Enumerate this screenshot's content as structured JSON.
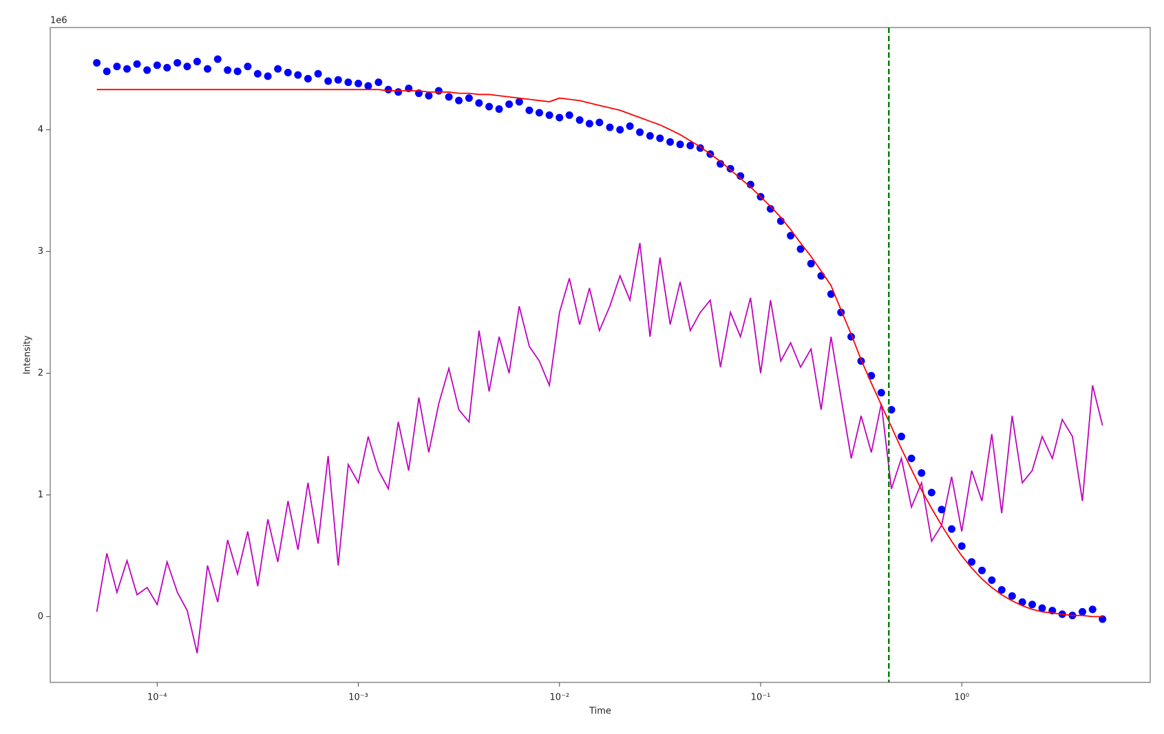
{
  "chart_data": {
    "type": "scatter",
    "xlabel": "Time",
    "ylabel": "Intensity",
    "y_offset_text": "1e6",
    "xscale": "log",
    "xlim": [
      2.94e-05,
      8.65
    ],
    "ylim": [
      -0.54,
      4.84
    ],
    "xticks": [
      {
        "value": 0.0001,
        "label": "10⁻⁴"
      },
      {
        "value": 0.001,
        "label": "10⁻³"
      },
      {
        "value": 0.01,
        "label": "10⁻²"
      },
      {
        "value": 0.1,
        "label": "10⁻¹"
      },
      {
        "value": 1,
        "label": "10⁰"
      }
    ],
    "yticks": [
      0,
      1,
      2,
      3,
      4
    ],
    "x": [
      5.01e-05,
      5.62e-05,
      6.31e-05,
      7.08e-05,
      7.94e-05,
      8.91e-05,
      0.0001,
      0.000112,
      0.000126,
      0.000141,
      0.000158,
      0.000178,
      0.0002,
      0.000224,
      0.000251,
      0.000282,
      0.000316,
      0.000355,
      0.000398,
      0.000447,
      0.000501,
      0.000562,
      0.000631,
      0.000708,
      0.000794,
      0.000891,
      0.001,
      0.00112,
      0.00126,
      0.00141,
      0.00158,
      0.00178,
      0.002,
      0.00224,
      0.00251,
      0.00282,
      0.00316,
      0.00355,
      0.00398,
      0.00447,
      0.00501,
      0.00562,
      0.00631,
      0.00708,
      0.00794,
      0.00891,
      0.01,
      0.0112,
      0.0126,
      0.0141,
      0.0158,
      0.0178,
      0.02,
      0.0224,
      0.0251,
      0.0282,
      0.0316,
      0.0355,
      0.0398,
      0.0447,
      0.0501,
      0.0562,
      0.0631,
      0.0708,
      0.0794,
      0.0891,
      0.1,
      0.112,
      0.126,
      0.141,
      0.158,
      0.178,
      0.2,
      0.224,
      0.251,
      0.282,
      0.316,
      0.355,
      0.398,
      0.447,
      0.501,
      0.562,
      0.631,
      0.708,
      0.794,
      0.891,
      1,
      1.12,
      1.26,
      1.41,
      1.58,
      1.78,
      2,
      2.24,
      2.51,
      2.82,
      3.16,
      3.55,
      3.98,
      4.47,
      5.01
    ],
    "series": [
      {
        "type": "line",
        "color": "#bf00bf",
        "values": [
          0.04,
          0.52,
          0.2,
          0.46,
          0.18,
          0.24,
          0.1,
          0.45,
          0.2,
          0.05,
          -0.3,
          0.42,
          0.12,
          0.63,
          0.35,
          0.7,
          0.25,
          0.8,
          0.45,
          0.95,
          0.55,
          1.1,
          0.6,
          1.32,
          0.42,
          1.25,
          1.1,
          1.48,
          1.2,
          1.05,
          1.6,
          1.2,
          1.8,
          1.35,
          1.75,
          2.04,
          1.7,
          1.6,
          2.35,
          1.85,
          2.3,
          2.0,
          2.55,
          2.22,
          2.1,
          1.9,
          2.5,
          2.78,
          2.4,
          2.7,
          2.35,
          2.55,
          2.8,
          2.6,
          3.07,
          2.3,
          2.95,
          2.4,
          2.75,
          2.35,
          2.5,
          2.6,
          2.05,
          2.5,
          2.3,
          2.62,
          2.0,
          2.6,
          2.1,
          2.25,
          2.05,
          2.2,
          1.7,
          2.3,
          1.8,
          1.3,
          1.65,
          1.35,
          1.75,
          1.05,
          1.3,
          0.9,
          1.1,
          0.62,
          0.75,
          1.15,
          0.7,
          1.2,
          0.95,
          1.5,
          0.85,
          1.65,
          1.1,
          1.2,
          1.48,
          1.3,
          1.62,
          1.48,
          0.95,
          1.9,
          1.57
        ]
      },
      {
        "type": "scatter",
        "color": "#0000ff",
        "values": [
          4.55,
          4.48,
          4.52,
          4.5,
          4.54,
          4.49,
          4.53,
          4.51,
          4.55,
          4.52,
          4.56,
          4.5,
          4.58,
          4.49,
          4.48,
          4.52,
          4.46,
          4.44,
          4.5,
          4.47,
          4.45,
          4.42,
          4.46,
          4.4,
          4.41,
          4.39,
          4.38,
          4.36,
          4.39,
          4.33,
          4.31,
          4.34,
          4.3,
          4.28,
          4.32,
          4.27,
          4.24,
          4.26,
          4.22,
          4.19,
          4.17,
          4.21,
          4.23,
          4.16,
          4.14,
          4.12,
          4.1,
          4.12,
          4.08,
          4.05,
          4.06,
          4.02,
          4.0,
          4.03,
          3.98,
          3.95,
          3.93,
          3.9,
          3.88,
          3.87,
          3.85,
          3.8,
          3.72,
          3.68,
          3.62,
          3.55,
          3.45,
          3.35,
          3.25,
          3.13,
          3.02,
          2.9,
          2.8,
          2.65,
          2.5,
          2.3,
          2.1,
          1.98,
          1.84,
          1.7,
          1.48,
          1.3,
          1.18,
          1.02,
          0.88,
          0.72,
          0.58,
          0.45,
          0.38,
          0.3,
          0.22,
          0.17,
          0.12,
          0.1,
          0.07,
          0.05,
          0.02,
          0.01,
          0.04,
          0.06,
          -0.02
        ]
      },
      {
        "type": "line",
        "color": "#ff0000",
        "values": [
          4.33,
          4.33,
          4.33,
          4.33,
          4.33,
          4.33,
          4.33,
          4.33,
          4.33,
          4.33,
          4.33,
          4.33,
          4.33,
          4.33,
          4.33,
          4.33,
          4.33,
          4.33,
          4.33,
          4.33,
          4.33,
          4.33,
          4.33,
          4.33,
          4.33,
          4.33,
          4.33,
          4.33,
          4.33,
          4.32,
          4.32,
          4.32,
          4.32,
          4.31,
          4.31,
          4.31,
          4.3,
          4.3,
          4.29,
          4.29,
          4.28,
          4.27,
          4.26,
          4.25,
          4.24,
          4.23,
          4.26,
          4.25,
          4.24,
          4.22,
          4.2,
          4.18,
          4.16,
          4.13,
          4.1,
          4.07,
          4.04,
          4.0,
          3.96,
          3.91,
          3.86,
          3.8,
          3.74,
          3.67,
          3.6,
          3.53,
          3.45,
          3.37,
          3.28,
          3.18,
          3.07,
          2.96,
          2.84,
          2.72,
          2.52,
          2.32,
          2.11,
          1.92,
          1.74,
          1.56,
          1.38,
          1.21,
          1.04,
          0.89,
          0.75,
          0.62,
          0.5,
          0.4,
          0.31,
          0.24,
          0.18,
          0.13,
          0.09,
          0.06,
          0.04,
          0.03,
          0.02,
          0.01,
          0.01,
          0.0,
          0.0
        ]
      }
    ],
    "vline": {
      "x": 0.434,
      "color": "#008000",
      "style": "dashed"
    }
  }
}
